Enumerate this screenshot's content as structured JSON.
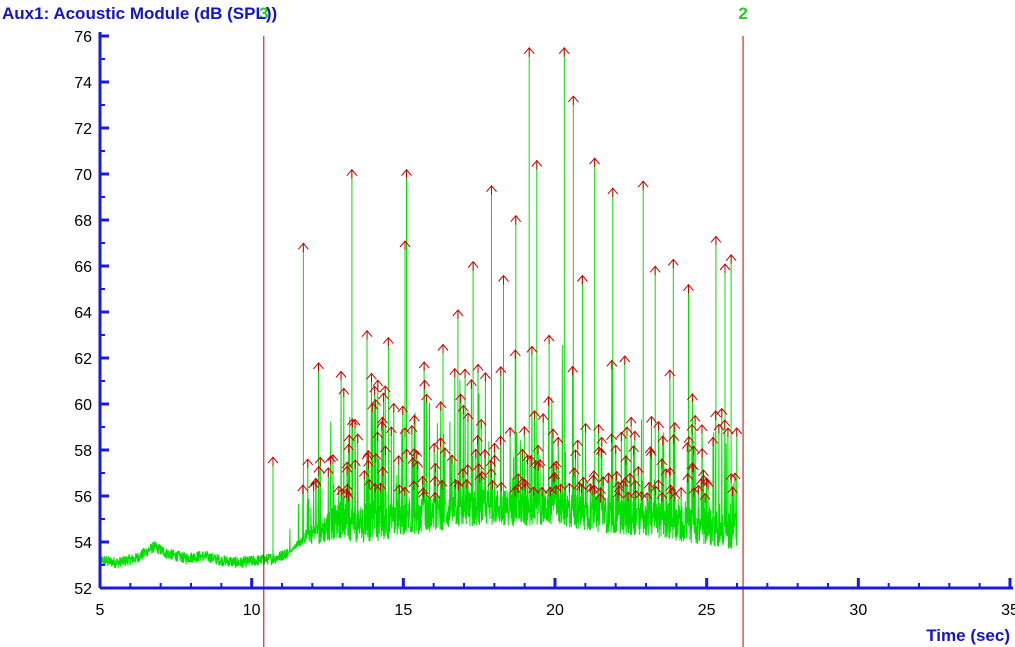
{
  "chart_data": {
    "type": "line",
    "title": "Aux1: Acoustic Module (dB (SPL))",
    "xlabel": "Time (sec)",
    "ylabel": "",
    "xlim": [
      5,
      35
    ],
    "ylim": [
      52,
      76
    ],
    "x_ticks": [
      5,
      10,
      15,
      20,
      25,
      30,
      35
    ],
    "y_ticks": [
      52,
      54,
      56,
      58,
      60,
      62,
      64,
      66,
      68,
      70,
      72,
      74,
      76
    ],
    "grid": false,
    "series": [
      {
        "color": "#00e000",
        "baseline": [
          [
            5.0,
            53.2
          ],
          [
            5.6,
            53.1
          ],
          [
            6.2,
            53.3
          ],
          [
            6.8,
            53.8
          ],
          [
            7.2,
            53.5
          ],
          [
            7.8,
            53.3
          ],
          [
            8.4,
            53.4
          ],
          [
            9.0,
            53.2
          ],
          [
            9.6,
            53.1
          ],
          [
            10.2,
            53.2
          ],
          [
            10.8,
            53.3
          ],
          [
            11.3,
            53.6
          ],
          [
            11.8,
            54.2
          ],
          [
            12.3,
            54.3
          ],
          [
            12.8,
            54.7
          ],
          [
            13.5,
            54.5
          ],
          [
            14.3,
            54.6
          ],
          [
            15.0,
            54.8
          ],
          [
            16.0,
            55.0
          ],
          [
            17.0,
            55.2
          ],
          [
            18.0,
            55.3
          ],
          [
            19.0,
            55.2
          ],
          [
            20.0,
            55.3
          ],
          [
            21.0,
            55.0
          ],
          [
            22.0,
            54.9
          ],
          [
            23.0,
            54.8
          ],
          [
            24.0,
            54.6
          ],
          [
            25.0,
            54.4
          ],
          [
            26.0,
            54.2
          ]
        ],
        "peaks": [
          [
            10.7,
            57.6
          ],
          [
            11.7,
            66.9
          ],
          [
            12.2,
            61.7
          ],
          [
            13.3,
            70.1
          ],
          [
            13.8,
            63.1
          ],
          [
            14.5,
            62.8
          ],
          [
            15.1,
            70.1
          ],
          [
            15.05,
            67.0
          ],
          [
            16.3,
            62.5
          ],
          [
            16.8,
            64.0
          ],
          [
            17.3,
            66.1
          ],
          [
            17.9,
            69.4
          ],
          [
            18.3,
            65.5
          ],
          [
            18.7,
            68.1
          ],
          [
            19.15,
            75.4
          ],
          [
            19.4,
            70.5
          ],
          [
            19.8,
            62.9
          ],
          [
            20.3,
            75.4
          ],
          [
            20.6,
            73.3
          ],
          [
            20.9,
            65.5
          ],
          [
            21.3,
            70.6
          ],
          [
            21.9,
            69.3
          ],
          [
            22.3,
            62.0
          ],
          [
            22.9,
            69.6
          ],
          [
            23.3,
            65.9
          ],
          [
            23.9,
            66.2
          ],
          [
            24.4,
            65.1
          ],
          [
            25.3,
            67.2
          ],
          [
            25.6,
            66.0
          ],
          [
            25.8,
            66.4
          ],
          [
            26.1,
            59.0
          ]
        ]
      }
    ],
    "markers": [
      {
        "x": 10.4,
        "label": "3",
        "color": "#cc0000"
      },
      {
        "x": 26.2,
        "label": "2",
        "color": "#cc0000"
      }
    ],
    "title_color": "#1414c8",
    "axis_color": "#1a1ae6",
    "marker_label_color": "#22cc22",
    "peak_arrow_color": "#cc0000"
  }
}
